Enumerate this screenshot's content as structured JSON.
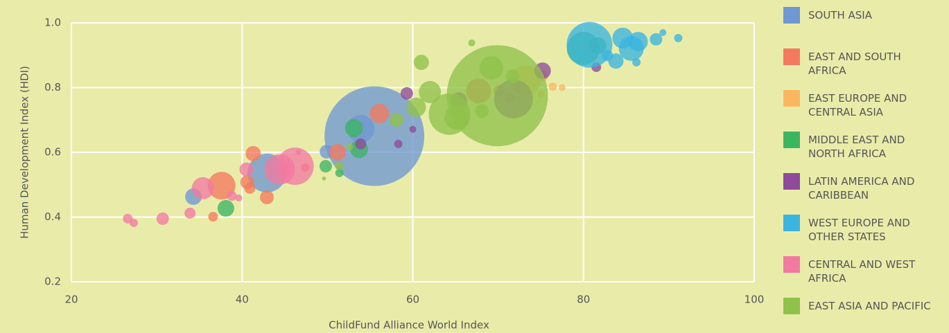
{
  "chart_data": {
    "type": "bubble",
    "x_label": "ChildFund Alliance World Index",
    "y_label": "Human Development Index (HDI)",
    "xlim": [
      20,
      100
    ],
    "xticks": [
      20,
      40,
      60,
      80,
      100
    ],
    "ylim": [
      0.2,
      1.0
    ],
    "yticks": [
      0.2,
      0.4,
      0.6,
      0.8,
      {
        "value": 1.0,
        "label": "1.0"
      }
    ],
    "grid": true,
    "legend": "right",
    "series": [
      {
        "name": "SOUTH ASIA",
        "color": "#6f97d3",
        "x": [
          55.5,
          53.9,
          42.9,
          34.3,
          49.9
        ],
        "values": [
          0.65,
          0.673,
          0.536,
          0.463,
          0.602
        ],
        "sizes": [
          72,
          20,
          28,
          12,
          10
        ]
      },
      {
        "name": "EAST AND SOUTH AFRICA",
        "color": "#f47a5e",
        "x": [
          56.1,
          51.2,
          41.3,
          40.6,
          42.9,
          36.6,
          45.2,
          47.4,
          40.9,
          70.1,
          67.7,
          71.3,
          37.6
        ],
        "values": [
          0.72,
          0.6,
          0.596,
          0.508,
          0.461,
          0.401,
          0.547,
          0.553,
          0.489,
          0.79,
          0.79,
          0.769,
          0.497
        ],
        "sizes": [
          14,
          12,
          11,
          10,
          10,
          7,
          8,
          6,
          8,
          8,
          18,
          7,
          20
        ]
      },
      {
        "name": "EAST EUROPE AND CENTRAL ASIA",
        "color": "#fbb75f",
        "x": [
          73.2,
          75.2,
          76.4,
          77.5,
          75.0
        ],
        "values": [
          0.822,
          0.835,
          0.803,
          0.8,
          0.78
        ],
        "sizes": [
          22,
          8,
          6,
          5,
          5
        ]
      },
      {
        "name": "MIDDLE EAST AND NORTH AFRICA",
        "color": "#3cb563",
        "x": [
          53.1,
          53.7,
          49.8,
          38.1,
          80.0,
          81.7,
          51.4
        ],
        "values": [
          0.675,
          0.61,
          0.557,
          0.427,
          0.921,
          0.93,
          0.536
        ],
        "sizes": [
          13,
          13,
          9,
          12,
          24,
          12,
          6
        ]
      },
      {
        "name": "LATIN AMERICA AND CARIBBEAN",
        "color": "#8e4b9c",
        "x": [
          71.8,
          75.2,
          59.3,
          58.3,
          60.0,
          65.4,
          81.5,
          53.9
        ],
        "values": [
          0.765,
          0.852,
          0.782,
          0.626,
          0.671,
          0.76,
          0.863,
          0.626
        ],
        "sizes": [
          28,
          12,
          9,
          6,
          5,
          12,
          7,
          8
        ]
      },
      {
        "name": "WEST EUROPE AND OTHER STATES",
        "color": "#3ab5e0",
        "x": [
          80.7,
          84.6,
          86.4,
          85.6,
          83.8,
          88.5,
          89.3,
          91.1,
          86.2,
          82.8
        ],
        "values": [
          0.932,
          0.953,
          0.942,
          0.921,
          0.882,
          0.949,
          0.97,
          0.953,
          0.878,
          0.899
        ],
        "sizes": [
          33,
          15,
          14,
          18,
          11,
          9,
          5,
          6,
          6,
          8
        ]
      },
      {
        "name": "CENTRAL AND WEST AFRICA",
        "color": "#f27aa1",
        "x": [
          35.4,
          46.2,
          44.4,
          40.5,
          26.6,
          27.3,
          30.7,
          33.9,
          38.8,
          39.6,
          46.6
        ],
        "values": [
          0.489,
          0.557,
          0.547,
          0.547,
          0.395,
          0.382,
          0.395,
          0.412,
          0.465,
          0.459,
          0.6
        ],
        "sizes": [
          16,
          27,
          22,
          10,
          7,
          6,
          9,
          8,
          7,
          5,
          4
        ]
      },
      {
        "name": "EAST ASIA AND PACIFIC",
        "color": "#8fc24b",
        "x": [
          69.9,
          64.3,
          62.0,
          69.2,
          61.0,
          65.2,
          58.1,
          60.4,
          71.7,
          68.1,
          51.4,
          52.6,
          66.9,
          49.6
        ],
        "values": [
          0.775,
          0.718,
          0.786,
          0.861,
          0.878,
          0.707,
          0.7,
          0.739,
          0.835,
          0.728,
          0.557,
          0.617,
          0.938,
          0.519
        ],
        "sizes": [
          73,
          30,
          16,
          17,
          11,
          18,
          10,
          14,
          10,
          10,
          6,
          5,
          5,
          3
        ]
      }
    ]
  }
}
